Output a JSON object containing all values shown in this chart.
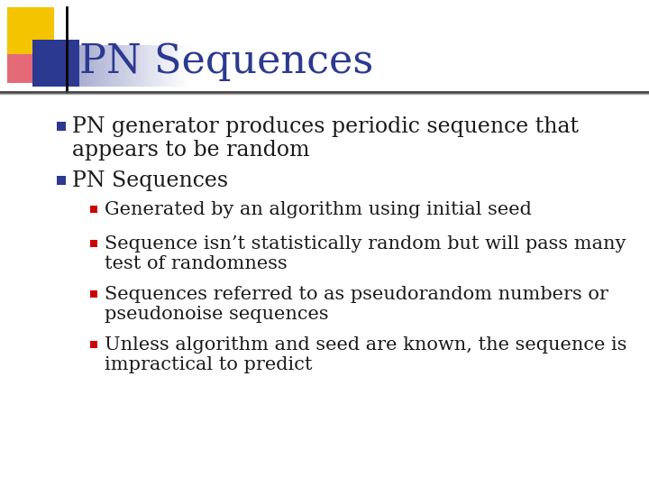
{
  "title": "PN Sequences",
  "title_color": "#2B3990",
  "title_fontsize": 32,
  "background_color": "#FFFFFF",
  "bullet1_line1": "PN generator produces periodic sequence that",
  "bullet1_line2": "appears to be random",
  "bullet2": "PN Sequences",
  "sub_bullets": [
    [
      "Generated by an algorithm using initial seed"
    ],
    [
      "Sequence isn’t statistically random but will pass many",
      "test of randomness"
    ],
    [
      "Sequences referred to as pseudorandom numbers or",
      "pseudonoise sequences"
    ],
    [
      "Unless algorithm and seed are known, the sequence is",
      "impractical to predict"
    ]
  ],
  "bullet_color": "#2B3990",
  "sub_bullet_color": "#CC0000",
  "text_color": "#1a1a1a",
  "bullet_fontsize": 17,
  "sub_bullet_fontsize": 15,
  "decoration_colors": {
    "yellow": "#F5C400",
    "blue": "#2B3990",
    "red_pink": "#E05060"
  },
  "slide_bg": "#E8E8E8"
}
